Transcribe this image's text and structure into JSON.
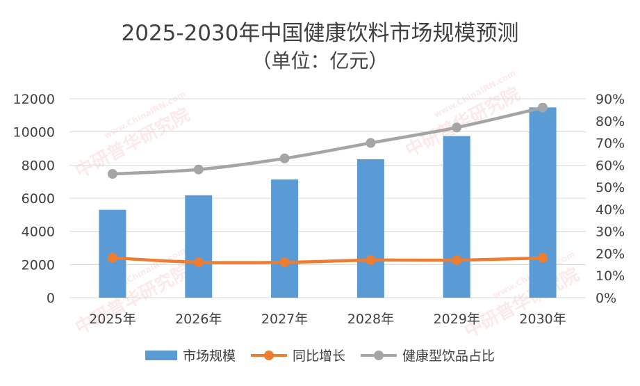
{
  "chart_data": {
    "type": "bar",
    "title_line1": "2025-2030年中国健康饮料市场规模预测",
    "title_line2": "（单位：亿元）",
    "categories": [
      "2025年",
      "2026年",
      "2027年",
      "2028年",
      "2029年",
      "2030年"
    ],
    "y_left": {
      "ticks": [
        "0",
        "2000",
        "4000",
        "6000",
        "8000",
        "10000",
        "12000"
      ],
      "min": 0,
      "max": 12000
    },
    "y_right": {
      "ticks": [
        "0%",
        "10%",
        "20%",
        "30%",
        "40%",
        "50%",
        "60%",
        "70%",
        "80%",
        "90%"
      ],
      "min": 0,
      "max": 90
    },
    "grid": true,
    "legend_position": "bottom",
    "series": [
      {
        "name": "市场规模",
        "type": "bar",
        "axis": "left",
        "color": "#5B9BD5",
        "values": [
          5300,
          6180,
          7130,
          8350,
          9750,
          11480
        ]
      },
      {
        "name": "同比增长",
        "type": "line",
        "axis": "right",
        "color": "#ED7D31",
        "values": [
          18,
          16,
          16,
          17,
          17,
          18
        ]
      },
      {
        "name": "健康型饮品占比",
        "type": "line",
        "axis": "right",
        "color": "#A5A5A5",
        "values": [
          56,
          58,
          63,
          70,
          77,
          86
        ]
      }
    ]
  },
  "watermark": {
    "cn": "中研普华研究院",
    "en": "www.ChinaIRN.com"
  }
}
